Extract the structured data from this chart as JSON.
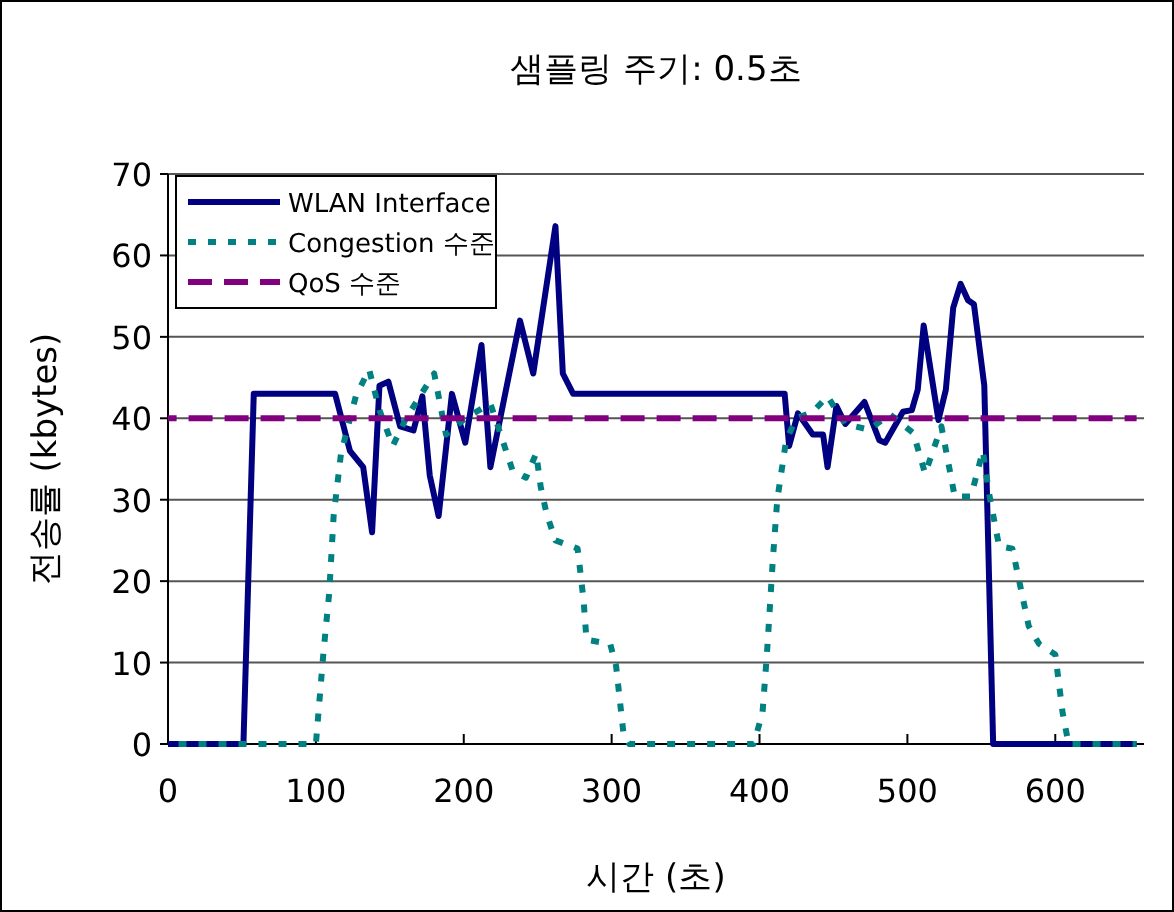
{
  "chart_data": {
    "type": "line",
    "title": "샘플링 주기: 0.5초",
    "xlabel": "시간 (초)",
    "ylabel": "전송률 (kbytes)",
    "xlim": [
      0,
      660
    ],
    "xticks": [
      0,
      100,
      200,
      300,
      400,
      500,
      600
    ],
    "ylim": [
      0,
      70
    ],
    "yticks": [
      0,
      10,
      20,
      30,
      40,
      50,
      60,
      70
    ],
    "grid": "y",
    "legend": "top left",
    "series": [
      {
        "name": "WLAN Interface",
        "color": "#000080",
        "line_style": "solid",
        "x": [
          0,
          51,
          58,
          113,
          123,
          132,
          138,
          143,
          149,
          157,
          166,
          172,
          177,
          183,
          192,
          201,
          212,
          218,
          238,
          247,
          262,
          267,
          274,
          417,
          420,
          426,
          436,
          443,
          446,
          452,
          458,
          471,
          481,
          485,
          497,
          503,
          507,
          511,
          521,
          526,
          531,
          536,
          541,
          545,
          552,
          558,
          655
        ],
        "values": [
          0,
          0,
          43,
          43,
          36,
          34,
          26,
          44,
          44.5,
          39,
          38.5,
          42.7,
          33,
          28,
          43,
          37,
          49,
          34,
          52,
          45.5,
          63.6,
          45.5,
          43,
          43,
          36.6,
          40.6,
          38,
          38,
          34,
          41.5,
          39.3,
          42,
          37.3,
          37,
          40.8,
          41,
          43.5,
          51.4,
          39.8,
          43.5,
          53.6,
          56.5,
          54.5,
          54,
          44,
          0,
          0
        ]
      },
      {
        "name": "Congestion 수준",
        "color": "#008080",
        "line_style": "dotted",
        "x": [
          0,
          100,
          105,
          109,
          112,
          117,
          127,
          136,
          143,
          152,
          161,
          180,
          188,
          201,
          218,
          233,
          242,
          249,
          252,
          256,
          262,
          277,
          281,
          283,
          299,
          303,
          308,
          312,
          396,
          402,
          405,
          409,
          412,
          418,
          425,
          436,
          446,
          458,
          474,
          488,
          504,
          512,
          523,
          532,
          543,
          551,
          555,
          562,
          571,
          582,
          589,
          600,
          605,
          609,
          655
        ],
        "values": [
          0,
          0,
          11,
          18.5,
          28,
          35.7,
          42.7,
          46,
          41,
          36.6,
          40,
          45.5,
          38,
          40,
          41.8,
          33.6,
          32.7,
          35.7,
          31.6,
          28.3,
          25,
          24,
          17.7,
          12.8,
          12.3,
          9.6,
          1.3,
          0,
          0,
          3.8,
          11,
          22.6,
          30,
          37.3,
          40,
          40.8,
          42.7,
          39.3,
          38.6,
          40.5,
          38.2,
          33.2,
          39,
          30.4,
          30.4,
          36,
          31,
          24.3,
          24,
          14.5,
          12.3,
          11,
          3.8,
          0,
          0
        ]
      },
      {
        "name": "QoS 수준",
        "color": "#800080",
        "line_style": "dashed",
        "x": [
          0,
          655
        ],
        "values": [
          40,
          40
        ]
      }
    ]
  }
}
